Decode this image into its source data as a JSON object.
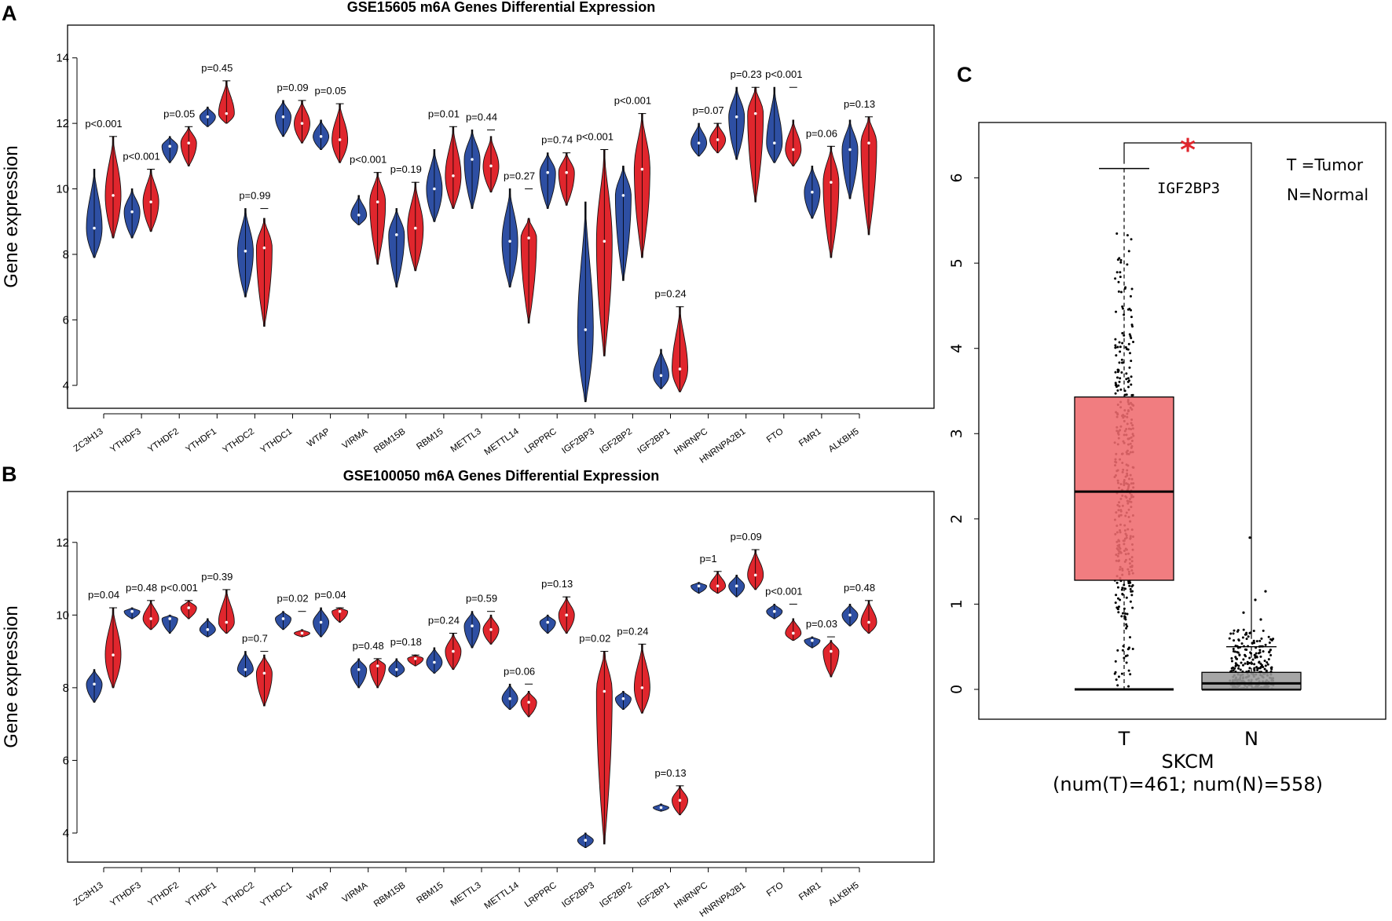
{
  "panel_letters": {
    "a": "A",
    "b": "B",
    "c": "C"
  },
  "colors": {
    "group1": "#2e4fa3",
    "group2": "#e0262d",
    "tumor_box": "#ef6b6e",
    "normal_box": "#9a9a9a",
    "star": "#e0262d"
  },
  "chart_data": [
    {
      "type": "violin",
      "panel": "A",
      "title": "GSE15605 m6A Genes Differential Expression",
      "ylabel": "Gene expression",
      "ylim": [
        3.3,
        15.0
      ],
      "yticks": [
        4,
        6,
        8,
        10,
        12,
        14
      ],
      "categories": [
        "ZC3H13",
        "YTHDF3",
        "YTHDF2",
        "YTHDF1",
        "YTHDC2",
        "YTHDC1",
        "WTAP",
        "VIRMA",
        "RBM15B",
        "RBM15",
        "METTL3",
        "METTL14",
        "LRPPRC",
        "IGF2BP3",
        "IGF2BP2",
        "IGF2BP1",
        "HNRNPC",
        "HNRNPA2B1",
        "FTO",
        "FMR1",
        "ALKBH5"
      ],
      "pvalues": [
        "p<0.001",
        "p<0.001",
        "p=0.05",
        "p=0.45",
        "p=0.99",
        "p=0.09",
        "p=0.05",
        "p<0.001",
        "p=0.19",
        "p=0.01",
        "p=0.44",
        "p=0.27",
        "p=0.74",
        "p<0.001",
        "p<0.001",
        "p=0.24",
        "p=0.07",
        "p=0.23",
        "p<0.001",
        "p=0.06",
        "p=0.13"
      ],
      "series": [
        {
          "name": "group1",
          "ranges": [
            [
              7.9,
              10.6
            ],
            [
              8.5,
              10.0
            ],
            [
              10.8,
              11.6
            ],
            [
              11.9,
              12.5
            ],
            [
              6.7,
              9.4
            ],
            [
              11.6,
              12.7
            ],
            [
              11.2,
              12.1
            ],
            [
              8.9,
              9.8
            ],
            [
              7.0,
              9.4
            ],
            [
              9.0,
              11.2
            ],
            [
              9.4,
              11.8
            ],
            [
              7.0,
              10.0
            ],
            [
              9.4,
              11.1
            ],
            [
              3.5,
              9.6
            ],
            [
              7.2,
              10.7
            ],
            [
              3.9,
              5.1
            ],
            [
              11.0,
              12.0
            ],
            [
              10.9,
              13.1
            ],
            [
              10.8,
              13.1
            ],
            [
              9.1,
              10.7
            ],
            [
              9.7,
              12.1
            ]
          ],
          "medians": [
            8.8,
            9.3,
            11.3,
            12.2,
            8.1,
            12.2,
            11.6,
            9.2,
            8.6,
            10.0,
            10.9,
            8.4,
            10.5,
            5.7,
            9.8,
            4.3,
            11.4,
            12.2,
            11.4,
            9.9,
            11.2
          ]
        },
        {
          "name": "group2",
          "ranges": [
            [
              8.5,
              11.6
            ],
            [
              8.7,
              10.6
            ],
            [
              10.7,
              11.9
            ],
            [
              12.0,
              13.3
            ],
            [
              5.8,
              9.1
            ],
            [
              11.4,
              12.7
            ],
            [
              10.8,
              12.6
            ],
            [
              7.7,
              10.5
            ],
            [
              7.5,
              10.2
            ],
            [
              9.4,
              11.9
            ],
            [
              9.9,
              11.6
            ],
            [
              5.9,
              9.1
            ],
            [
              9.5,
              11.1
            ],
            [
              4.9,
              11.2
            ],
            [
              7.9,
              12.3
            ],
            [
              3.8,
              6.4
            ],
            [
              11.1,
              12.0
            ],
            [
              9.6,
              13.1
            ],
            [
              10.7,
              12.1
            ],
            [
              7.9,
              11.3
            ],
            [
              8.6,
              12.2
            ]
          ],
          "medians": [
            9.8,
            9.6,
            11.4,
            12.3,
            8.2,
            12.0,
            11.5,
            9.6,
            8.8,
            10.4,
            10.7,
            8.5,
            10.5,
            8.4,
            10.6,
            4.5,
            11.5,
            12.3,
            11.2,
            10.2,
            11.4
          ]
        }
      ]
    },
    {
      "type": "violin",
      "panel": "B",
      "title": "GSE100050 m6A Genes Differential Expression",
      "ylabel": "Gene expression",
      "ylim": [
        3.2,
        13.4
      ],
      "yticks": [
        4,
        6,
        8,
        10,
        12
      ],
      "categories": [
        "ZC3H13",
        "YTHDF3",
        "YTHDF2",
        "YTHDF1",
        "YTHDC2",
        "YTHDC1",
        "WTAP",
        "VIRMA",
        "RBM15B",
        "RBM15",
        "METTL3",
        "METTL14",
        "LRPPRC",
        "IGF2BP3",
        "IGF2BP2",
        "IGF2BP1",
        "HNRNPC",
        "HNRNPA2B1",
        "FTO",
        "FMR1",
        "ALKBH5"
      ],
      "pvalues": [
        "p=0.04",
        "p=0.48",
        "p<0.001",
        "p=0.39",
        "p=0.7",
        "p=0.02",
        "p=0.04",
        "p=0.48",
        "p=0.18",
        "p=0.24",
        "p=0.59",
        "p=0.06",
        "p=0.13",
        "p=0.02",
        "p=0.24",
        "p=0.13",
        "p=1",
        "p=0.09",
        "p<0.001",
        "p=0.03",
        "p=0.48"
      ],
      "series": [
        {
          "name": "group1",
          "ranges": [
            [
              7.6,
              8.5
            ],
            [
              9.9,
              10.2
            ],
            [
              9.5,
              10.0
            ],
            [
              9.4,
              9.9
            ],
            [
              8.3,
              9.0
            ],
            [
              9.6,
              10.1
            ],
            [
              9.4,
              10.2
            ],
            [
              8.0,
              8.8
            ],
            [
              8.3,
              8.8
            ],
            [
              8.4,
              9.1
            ],
            [
              9.1,
              10.1
            ],
            [
              7.4,
              8.1
            ],
            [
              9.5,
              10.0
            ],
            [
              3.6,
              4.0
            ],
            [
              7.4,
              7.9
            ],
            [
              4.6,
              4.8
            ],
            [
              10.6,
              10.9
            ],
            [
              10.5,
              11.1
            ],
            [
              9.9,
              10.3
            ],
            [
              9.1,
              9.4
            ],
            [
              9.7,
              10.3
            ]
          ],
          "medians": [
            8.1,
            10.1,
            9.9,
            9.6,
            8.5,
            9.9,
            9.8,
            8.5,
            8.5,
            8.7,
            9.7,
            7.7,
            9.8,
            3.8,
            7.7,
            4.7,
            10.8,
            10.8,
            10.1,
            9.3,
            10.0
          ]
        },
        {
          "name": "group2",
          "ranges": [
            [
              8.0,
              10.2
            ],
            [
              9.6,
              10.4
            ],
            [
              9.9,
              10.4
            ],
            [
              9.5,
              10.7
            ],
            [
              7.5,
              8.9
            ],
            [
              9.4,
              9.6
            ],
            [
              9.8,
              10.2
            ],
            [
              8.0,
              8.8
            ],
            [
              8.6,
              8.9
            ],
            [
              8.5,
              9.5
            ],
            [
              9.2,
              10.0
            ],
            [
              7.2,
              7.9
            ],
            [
              9.5,
              10.5
            ],
            [
              3.7,
              9.0
            ],
            [
              7.3,
              9.2
            ],
            [
              4.5,
              5.3
            ],
            [
              10.6,
              11.2
            ],
            [
              10.7,
              11.8
            ],
            [
              9.3,
              9.9
            ],
            [
              8.3,
              9.3
            ],
            [
              9.5,
              10.4
            ]
          ],
          "medians": [
            8.9,
            9.9,
            10.2,
            9.8,
            8.4,
            9.5,
            10.1,
            8.6,
            8.8,
            9.0,
            9.6,
            7.6,
            10.0,
            7.9,
            8.0,
            4.9,
            10.8,
            11.1,
            9.5,
            9.0,
            9.8
          ]
        }
      ]
    },
    {
      "type": "box",
      "panel": "C",
      "gene": "IGF2BP3",
      "ylim": [
        -0.35,
        6.65
      ],
      "yticks": [
        0,
        1,
        2,
        3,
        4,
        5,
        6
      ],
      "categories": [
        "T",
        "N"
      ],
      "dataset": "SKCM",
      "counts_label": "(num(T)=461; num(N)=558)",
      "significance": "*",
      "legend": [
        "T =Tumor",
        "N=Normal"
      ],
      "boxes": [
        {
          "name": "T",
          "q1": 1.28,
          "median": 2.32,
          "q3": 3.43,
          "whisker_low": 0.0,
          "whisker_high": 6.11
        },
        {
          "name": "N",
          "q1": 0.0,
          "median": 0.07,
          "q3": 0.2,
          "whisker_low": 0.0,
          "whisker_high": 0.5
        }
      ]
    }
  ]
}
